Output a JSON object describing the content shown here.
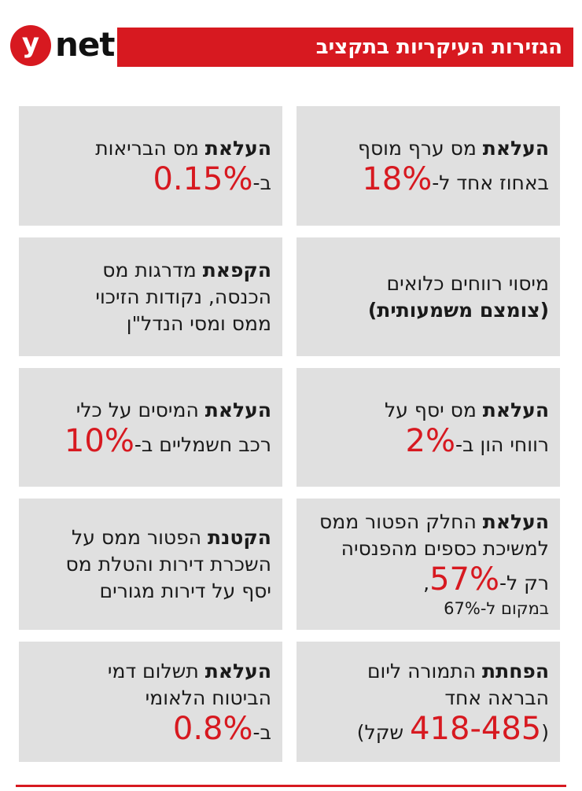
{
  "header": {
    "logo_y": "y",
    "logo_net": "net",
    "title": "הגזירות העיקריות בתקציב"
  },
  "accent_color": "#d71920",
  "cell_bg": "#e0e0e0",
  "cells": [
    {
      "l1_bold": "העלאת",
      "l1_rest": " מס ערף מוסף",
      "l2_pre": "באחוז אחד ל-",
      "l2_big": "18%"
    },
    {
      "l1_bold": "העלאת",
      "l1_rest": " מס הבריאות",
      "l2_pre": "ב-",
      "l2_big": "0.15%"
    },
    {
      "l1": "מיסוי רווחים כלואים",
      "l2_bold": "(צומצם משמעותית)"
    },
    {
      "l1_bold": "הקפאת",
      "l1_rest": " מדרגות מס",
      "l2": "הכנסה, נקודות הזיכוי",
      "l3": "ממס ומסי הנדל\"ן"
    },
    {
      "l1_bold": "העלאת",
      "l1_rest": " מס יסף על",
      "l2_pre": "רווחי הון ב-",
      "l2_big": "2%"
    },
    {
      "l1_bold": "העלאת",
      "l1_rest": " המיסים על כלי",
      "l2_pre": "רכב חשמליים ב-",
      "l2_big": "10%"
    },
    {
      "l1_bold": "העלאת",
      "l1_rest": " החלק הפטור ממס",
      "l2": "למשיכת כספים מהפנסיה",
      "l3_pre": "רק ל-",
      "l3_big": "57%",
      "l3_post": ",",
      "l4": "במקום ל-67%"
    },
    {
      "l1_bold": "הקטנת",
      "l1_rest": " הפטור ממס על",
      "l2": "השכרת דירות והטלת מס",
      "l3": "יסף על דירות מגורים"
    },
    {
      "l1_bold": "הפחתת",
      "l1_rest": " התמורה ליום",
      "l2": "הבראה אחד",
      "l3_pre": "(",
      "l3_big": "418-485",
      "l3_post": " שקל)"
    },
    {
      "l1_bold": "העלאת",
      "l1_rest": " תשלום דמי",
      "l2": "הביטוח הלאומי",
      "l3_pre": "ב-",
      "l3_big": "0.8%"
    }
  ]
}
